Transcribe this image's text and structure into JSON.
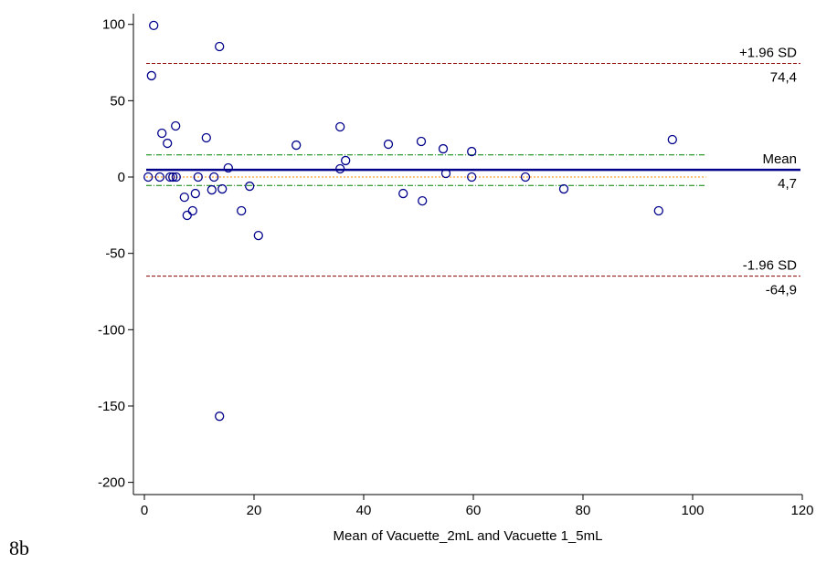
{
  "chart_data": {
    "type": "scatter",
    "figure_label": "8b",
    "x_label": "Mean of Vacuette_2mL and Vacuette 1_5mL",
    "xlim": [
      -2,
      120
    ],
    "ylim": [
      -208,
      107
    ],
    "xticks": [
      0,
      20,
      40,
      60,
      80,
      100,
      120
    ],
    "yticks": [
      -200,
      -150,
      -100,
      -50,
      0,
      50,
      100
    ],
    "color": "#00008b",
    "x": [
      1.7,
      1.3,
      13.7,
      3.2,
      4.2,
      5.7,
      11.3,
      0.7,
      2.8,
      4.7,
      5.2,
      5.8,
      9.8,
      12.7,
      15.3,
      7.3,
      9.3,
      7.8,
      8.8,
      12.3,
      14.2,
      19.2,
      17.7,
      20.8,
      13.7,
      27.7,
      35.7,
      35.7,
      36.7,
      44.5,
      47.2,
      50.5,
      50.7,
      54.5,
      55,
      59.7,
      59.7,
      69.5,
      76.5,
      96.3,
      93.8
    ],
    "values": [
      99.3,
      66.4,
      85.5,
      28.7,
      22.1,
      33.5,
      25.7,
      0,
      0,
      0,
      0,
      0,
      0,
      0,
      6,
      -13.2,
      -10.8,
      -25.1,
      -22.1,
      -8.4,
      -7.8,
      -6,
      -22.1,
      -38.3,
      -156.7,
      20.9,
      32.9,
      5.4,
      10.8,
      21.5,
      -10.8,
      23.3,
      -15.6,
      18.5,
      2.4,
      16.7,
      0,
      0,
      -7.8,
      24.5,
      -22.1
    ],
    "reference_lines": [
      {
        "label": "+1.96 SD",
        "value": 74.4,
        "value_label": "74,4",
        "color": "#8b0000",
        "style": "dashed"
      },
      {
        "label": "Mean",
        "value": 4.7,
        "value_label": "4,7",
        "color": "#00008b",
        "style": "solid"
      },
      {
        "label": "-1.96 SD",
        "value": -64.9,
        "value_label": "-64,9",
        "color": "#8b0000",
        "style": "dashed"
      }
    ],
    "guide_lines": [
      {
        "value": 14.5,
        "color": "#008000",
        "style": "dashdot"
      },
      {
        "value": 0,
        "color": "#ff8c00",
        "style": "dotted"
      },
      {
        "value": -5.5,
        "color": "#008000",
        "style": "dashdot"
      }
    ]
  }
}
